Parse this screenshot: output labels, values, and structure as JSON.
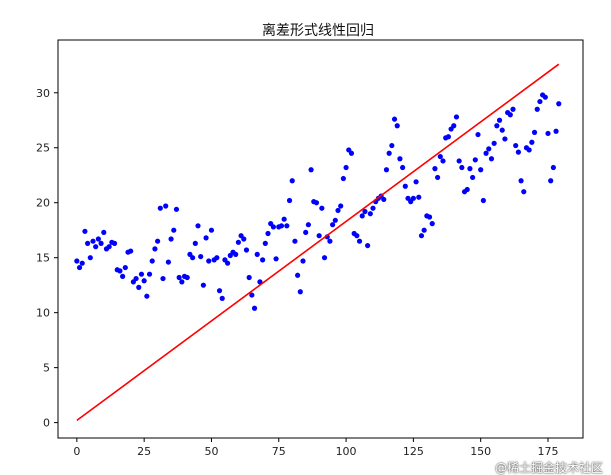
{
  "chart_data": {
    "type": "scatter",
    "title": "离差形式线性回归",
    "xlabel": "",
    "ylabel": "",
    "xlim": [
      -7,
      188
    ],
    "ylim": [
      -1.4,
      34.8
    ],
    "xticks": [
      0,
      25,
      50,
      75,
      100,
      125,
      150,
      175
    ],
    "yticks": [
      0,
      5,
      10,
      15,
      20,
      25,
      30
    ],
    "grid": false,
    "series": [
      {
        "kind": "scatter",
        "color": "#0000ff",
        "x_start": 0,
        "x_step": 1,
        "y": [
          14.7,
          14.1,
          14.5,
          17.4,
          16.3,
          15.0,
          16.5,
          16.0,
          16.7,
          16.3,
          17.3,
          15.8,
          16.0,
          16.4,
          16.3,
          13.9,
          13.8,
          13.3,
          14.1,
          15.5,
          15.6,
          12.8,
          13.1,
          12.3,
          13.5,
          12.9,
          11.5,
          13.5,
          14.7,
          15.8,
          16.5,
          19.5,
          13.1,
          19.7,
          14.6,
          16.7,
          17.5,
          19.4,
          13.2,
          12.8,
          13.3,
          13.2,
          15.3,
          15.0,
          16.3,
          17.9,
          15.1,
          12.5,
          16.8,
          14.7,
          17.5,
          14.8,
          15.0,
          12.0,
          11.3,
          14.8,
          14.5,
          15.2,
          15.5,
          15.3,
          16.4,
          17.0,
          16.7,
          15.7,
          13.2,
          11.6,
          10.4,
          15.3,
          12.8,
          14.8,
          16.3,
          17.2,
          18.1,
          17.8,
          14.9,
          17.8,
          17.9,
          18.5,
          17.9,
          20.2,
          22.0,
          16.5,
          13.4,
          11.9,
          14.7,
          17.3,
          18.0,
          23.0,
          20.1,
          20.0,
          17.0,
          19.5,
          15.0,
          16.9,
          16.5,
          18.0,
          18.4,
          19.3,
          19.7,
          22.2,
          23.2,
          24.8,
          24.5,
          17.2,
          17.0,
          16.5,
          18.8,
          19.2,
          16.1,
          19.0,
          19.5,
          20.1,
          20.4,
          20.6,
          20.3,
          23.0,
          24.5,
          25.2,
          27.6,
          27.0,
          24.0,
          23.2,
          21.5,
          20.4,
          20.1,
          20.4,
          21.9,
          20.5,
          17.0,
          17.5,
          18.8,
          18.7,
          18.1,
          23.1,
          22.3,
          24.2,
          23.8,
          25.9,
          26.0,
          26.7,
          27.0,
          27.8,
          23.8,
          23.2,
          21.0,
          21.2,
          23.1,
          22.3,
          23.9,
          26.2,
          23.0,
          20.2,
          24.5,
          24.9,
          24.0,
          25.4,
          27.0,
          27.5,
          26.6,
          25.8,
          28.2,
          28.0,
          28.5,
          25.2,
          24.6,
          22.0,
          21.0,
          25.0,
          24.8,
          25.5,
          26.4,
          28.5,
          29.2,
          29.8,
          29.6,
          26.3,
          22.0,
          23.2,
          26.5,
          29.0
        ]
      },
      {
        "kind": "line",
        "color": "#ff0000",
        "x": [
          0,
          179
        ],
        "y": [
          0.2,
          32.6
        ]
      }
    ]
  },
  "watermark": "@稀土掘金技术社区"
}
